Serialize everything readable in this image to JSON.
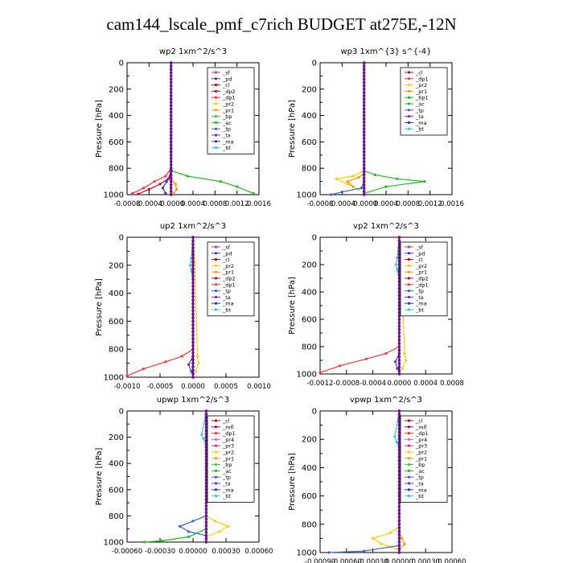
{
  "page_title": "cam144_lscale_pmf_c7rich  BUDGET at275E,-12N",
  "colors": {
    "_sf": "#cc3399",
    "_pd": "#3333cc",
    "_cl": "#cc0000",
    "_dp2": "#cc0033",
    "_dp1": "#ff3333",
    "_pr2": "#ffcc00",
    "_pr1": "#ff9900",
    "_bp": "#33cc33",
    "_ac": "#22bb22",
    "_tp": "#3366cc",
    "_ta": "#6633cc",
    "_ma": "#333399",
    "_bt": "#33cccc",
    "_mfl": "#990066",
    "_pr4": "#cc66cc",
    "_pr3": "#cc3366",
    "_bp1": "#22aa22",
    "_bp2": "#33cc33",
    "_dp": "#993366"
  },
  "chart_data": [
    {
      "type": "line",
      "title": "wp2   1xm^2/s^3",
      "ylabel": "Pressure  [hPa]",
      "xlim": [
        -0.0008,
        0.0016
      ],
      "ylim": [
        1000,
        0
      ],
      "xticks": [
        "-0.0008",
        "-0.0004",
        "-0.0000",
        "0.0004",
        "0.0008",
        "0.0012",
        "0.0016"
      ],
      "yticks": [
        "0",
        "200",
        "400",
        "600",
        "800",
        "1000"
      ],
      "legend": [
        "_sf",
        "_pd",
        "_cl",
        "_dp2",
        "_dp1",
        "_pr2",
        "_pr1",
        "_bp",
        "_ac",
        "_tp",
        "_ta",
        "_ma",
        "_bt"
      ],
      "series": [
        {
          "name": "_dp1",
          "x": [
            0,
            0,
            -0.0001,
            -0.0003,
            -0.0005,
            -0.0007
          ],
          "y": [
            0,
            800,
            860,
            900,
            950,
            990
          ]
        },
        {
          "name": "_dp2",
          "x": [
            0,
            0,
            -5e-05,
            -0.0002,
            -0.0004,
            -0.0006
          ],
          "y": [
            0,
            820,
            880,
            920,
            960,
            995
          ]
        },
        {
          "name": "_ac",
          "x": [
            0,
            1e-05,
            0.0003,
            0.0009,
            0.0012,
            0.0015
          ],
          "y": [
            0,
            820,
            860,
            900,
            940,
            990
          ]
        },
        {
          "name": "_pr1",
          "x": [
            0,
            0,
            8e-05,
            0.0001,
            5e-05
          ],
          "y": [
            0,
            880,
            920,
            960,
            990
          ]
        },
        {
          "name": "_pd",
          "x": [
            0,
            0,
            -8e-05,
            -0.00015,
            -0.0001
          ],
          "y": [
            0,
            850,
            900,
            950,
            990
          ]
        },
        {
          "name": "_sf",
          "x": [
            0,
            0,
            0
          ],
          "y": [
            0,
            500,
            1000
          ]
        }
      ]
    },
    {
      "type": "line",
      "title": "wp3   1xm^{3} s^{-4}",
      "ylabel": "Pressure  [hPa]",
      "xlim": [
        -0.0008,
        0.0016
      ],
      "ylim": [
        1000,
        0
      ],
      "xticks": [
        "-0.0008",
        "-0.0004",
        "-0.0000",
        "0.0004",
        "0.0008",
        "0.0012",
        "0.0016"
      ],
      "yticks": [
        "0",
        "200",
        "400",
        "600",
        "800",
        "1000"
      ],
      "legend": [
        "_cl",
        "_dp1",
        "_pr2",
        "_pr1",
        "_bp1",
        "_ac",
        "_tp",
        "_ta",
        "_ma",
        "_bt"
      ],
      "series": [
        {
          "name": "_ac",
          "x": [
            0,
            0,
            0.0002,
            0.0006,
            0.0011,
            0.0004,
            0
          ],
          "y": [
            0,
            820,
            850,
            880,
            900,
            940,
            990
          ]
        },
        {
          "name": "_pr2",
          "x": [
            0,
            0,
            -0.0002,
            -0.0005,
            -0.0003,
            -0.0001
          ],
          "y": [
            0,
            820,
            860,
            880,
            920,
            960
          ]
        },
        {
          "name": "_pr1",
          "x": [
            0,
            0,
            -0.0001,
            -0.0003,
            -0.0002
          ],
          "y": [
            0,
            840,
            870,
            900,
            940
          ]
        },
        {
          "name": "_tp",
          "x": [
            0,
            0,
            -5e-05,
            -0.0004,
            -0.0006
          ],
          "y": [
            0,
            900,
            950,
            980,
            1000
          ]
        },
        {
          "name": "_cl",
          "x": [
            0,
            0,
            0
          ],
          "y": [
            0,
            500,
            1000
          ]
        }
      ]
    },
    {
      "type": "line",
      "title": "up2   1xm^2/s^3",
      "ylabel": "Pressure  [hPa]",
      "xlim": [
        -0.0012,
        0.0012
      ],
      "ylim": [
        1000,
        0
      ],
      "xticks": [
        "-0.0010",
        "-0.0005",
        "0.0000",
        "0.0005",
        "0.0010"
      ],
      "yticks": [
        "0",
        "200",
        "400",
        "600",
        "800",
        "1000"
      ],
      "legend": [
        "_sf",
        "_pd",
        "_cl",
        "_pr2",
        "_pr1",
        "_dp2",
        "_dp1",
        "_tp",
        "_ta",
        "_ma",
        "_bt"
      ],
      "series": [
        {
          "name": "_dp1",
          "x": [
            0,
            0,
            -0.0002,
            -0.0005,
            -0.0009,
            -0.0012
          ],
          "y": [
            0,
            800,
            850,
            890,
            940,
            990
          ]
        },
        {
          "name": "_pr2",
          "x": [
            0,
            3e-05,
            8e-05,
            0.0001,
            5e-05
          ],
          "y": [
            0,
            180,
            850,
            900,
            960
          ]
        },
        {
          "name": "_bt",
          "x": [
            0,
            -3e-05,
            -5e-05,
            -3e-05,
            0
          ],
          "y": [
            0,
            150,
            200,
            240,
            300
          ]
        },
        {
          "name": "_ta",
          "x": [
            0,
            0,
            -8e-05,
            -3e-05
          ],
          "y": [
            0,
            850,
            910,
            960
          ]
        },
        {
          "name": "_cl",
          "x": [
            0,
            0,
            0
          ],
          "y": [
            0,
            500,
            1000
          ]
        }
      ]
    },
    {
      "type": "line",
      "title": "vp2   1xm^2/s^3",
      "ylabel": "Pressure  [hPa]",
      "xlim": [
        -0.0012,
        0.0008
      ],
      "ylim": [
        1000,
        0
      ],
      "xticks": [
        "-0.0012",
        "-0.0008",
        "-0.0004",
        "0.0000",
        "0.0004",
        "0.0008"
      ],
      "yticks": [
        "0",
        "200",
        "400",
        "600",
        "800",
        "1000"
      ],
      "legend": [
        "_sf",
        "_pd",
        "_cl",
        "_pr2",
        "_pr1",
        "_dp2",
        "_dp1",
        "_tp",
        "_ta",
        "_ma",
        "_bt"
      ],
      "series": [
        {
          "name": "_dp1",
          "x": [
            0,
            0,
            -0.0002,
            -0.0005,
            -0.0009,
            -0.0012
          ],
          "y": [
            0,
            800,
            850,
            890,
            940,
            990
          ]
        },
        {
          "name": "_pr2",
          "x": [
            0,
            3e-05,
            8e-05,
            0.0001,
            5e-05
          ],
          "y": [
            0,
            180,
            850,
            900,
            960
          ]
        },
        {
          "name": "_bt",
          "x": [
            0,
            -3e-05,
            -5e-05,
            -3e-05,
            0
          ],
          "y": [
            0,
            150,
            200,
            240,
            300
          ]
        },
        {
          "name": "_ta",
          "x": [
            0,
            0,
            -6e-05,
            -3e-05
          ],
          "y": [
            0,
            850,
            910,
            960
          ]
        },
        {
          "name": "_cl",
          "x": [
            0,
            0,
            0
          ],
          "y": [
            0,
            500,
            1000
          ]
        }
      ]
    },
    {
      "type": "line",
      "title": "upwp   1xm^2/s^3",
      "ylabel": "Pressure  [hPa]",
      "xlim": [
        -0.0009,
        0.0006
      ],
      "ylim": [
        1000,
        0
      ],
      "xticks": [
        "-0.00060",
        "-0.00030",
        "0.00000",
        "0.00030",
        "0.00060"
      ],
      "yticks": [
        "0",
        "200",
        "400",
        "600",
        "800",
        "1000"
      ],
      "legend": [
        "_cl",
        "_mfl",
        "_dp1",
        "_pr4",
        "_pr3",
        "_pr2",
        "_pr1",
        "_bp",
        "_ac",
        "_tp",
        "_ta",
        "_ma",
        "_bt"
      ],
      "series": [
        {
          "name": "_pr2",
          "x": [
            0,
            0,
            0.0001,
            0.00025,
            0.00015,
            0
          ],
          "y": [
            0,
            800,
            840,
            880,
            920,
            960
          ]
        },
        {
          "name": "_tp",
          "x": [
            0,
            0,
            -0.00015,
            -0.0003,
            -0.0002,
            0
          ],
          "y": [
            0,
            800,
            840,
            880,
            920,
            950
          ]
        },
        {
          "name": "_bt",
          "x": [
            0,
            -5e-05,
            -3e-05,
            0
          ],
          "y": [
            0,
            180,
            210,
            260
          ]
        },
        {
          "name": "_ac",
          "x": [
            0,
            0,
            -0.0002,
            -0.0005,
            -0.0007
          ],
          "y": [
            0,
            900,
            960,
            990,
            1000
          ]
        },
        {
          "name": "_mfl",
          "x": [
            0,
            0,
            0
          ],
          "y": [
            0,
            500,
            1000
          ]
        }
      ]
    },
    {
      "type": "line",
      "title": "vpwp   1xm^2/s^3",
      "ylabel": "Pressure  [hPa]",
      "xlim": [
        -0.0009,
        0.0006
      ],
      "ylim": [
        1000,
        0
      ],
      "xticks": [
        "-0.00090",
        "-0.00060",
        "-0.00030",
        "0.00000",
        "0.00030",
        "0.00060"
      ],
      "yticks": [
        "0",
        "200",
        "400",
        "600",
        "800",
        "1000"
      ],
      "legend": [
        "_cl",
        "_mfl",
        "_dp1",
        "_pr4",
        "_pr3",
        "_pr2",
        "_pr1",
        "_bp",
        "_ac",
        "_tp",
        "_ta",
        "_ma",
        "_bt"
      ],
      "series": [
        {
          "name": "_pr2",
          "x": [
            0,
            0,
            -0.0001,
            -0.0003,
            -0.0002,
            0
          ],
          "y": [
            0,
            820,
            860,
            900,
            940,
            980
          ]
        },
        {
          "name": "_pr1",
          "x": [
            0,
            0,
            3e-05,
            6e-05,
            0
          ],
          "y": [
            0,
            860,
            900,
            940,
            980
          ]
        },
        {
          "name": "_bt",
          "x": [
            0,
            -5e-05,
            -3e-05,
            0
          ],
          "y": [
            0,
            180,
            220,
            260
          ]
        },
        {
          "name": "_pr3",
          "x": [
            0,
            3e-05,
            5e-05,
            3e-05,
            0
          ],
          "y": [
            0,
            180,
            220,
            280,
            320
          ]
        },
        {
          "name": "_tp",
          "x": [
            0,
            0,
            -0.0004,
            -0.0008
          ],
          "y": [
            0,
            950,
            990,
            1000
          ]
        },
        {
          "name": "_mfl",
          "x": [
            0,
            0,
            0
          ],
          "y": [
            0,
            500,
            1000
          ]
        }
      ]
    }
  ]
}
